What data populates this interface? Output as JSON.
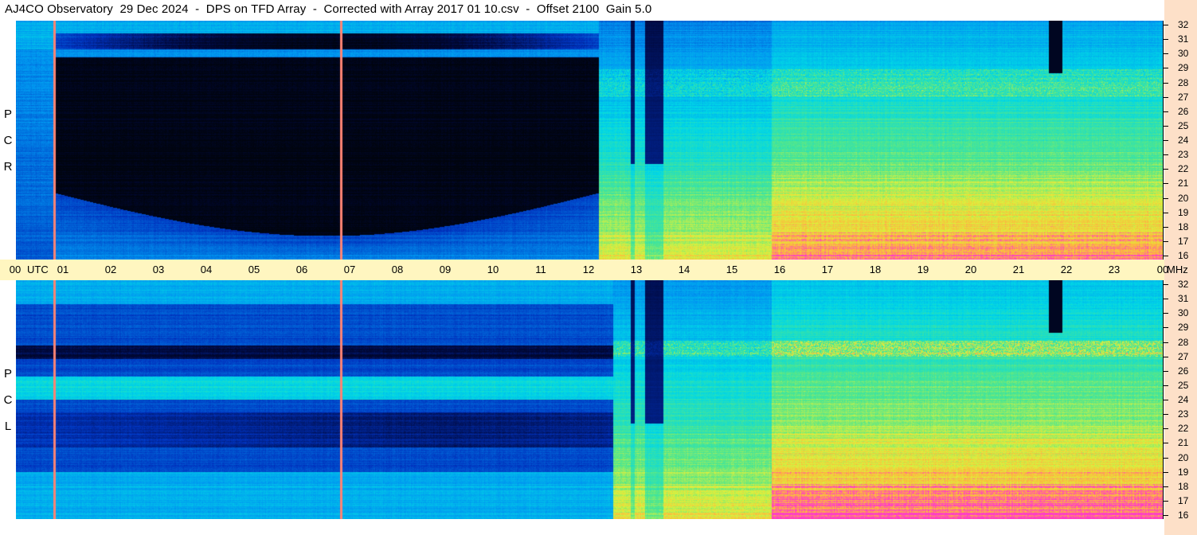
{
  "title": "AJ4CO Observatory  29 Dec 2024  -  DPS on TFD Array  -  Corrected with Array 2017 01 10.csv  -  Offset 2100  Gain 5.0",
  "panels": [
    {
      "id": "top",
      "label_letters": [
        "P",
        "C",
        "R"
      ]
    },
    {
      "id": "bottom",
      "label_letters": [
        "P",
        "C",
        "L"
      ]
    }
  ],
  "time_axis": {
    "start_label": "00",
    "unit_label": "UTC",
    "hours": [
      "01",
      "02",
      "03",
      "04",
      "05",
      "06",
      "07",
      "08",
      "09",
      "10",
      "11",
      "12",
      "13",
      "14",
      "15",
      "16",
      "17",
      "18",
      "19",
      "20",
      "21",
      "22",
      "23"
    ],
    "end_label": "00",
    "end_unit": "MHz"
  },
  "freq_axis": {
    "labels": [
      "32",
      "31",
      "30",
      "29",
      "28",
      "27",
      "26",
      "25",
      "24",
      "23",
      "22",
      "21",
      "20",
      "19",
      "18",
      "17",
      "16"
    ]
  },
  "colors": {
    "background": "#ffffff",
    "time_axis_bg": "#fff6c0",
    "freq_axis_bg": "#fde0c8",
    "spectro_dark": "#00060e",
    "palette_low": "#0038c0",
    "palette_mid": "#00c8f0",
    "palette_high": "#d8f040",
    "palette_peak": "#ff40c0"
  }
}
